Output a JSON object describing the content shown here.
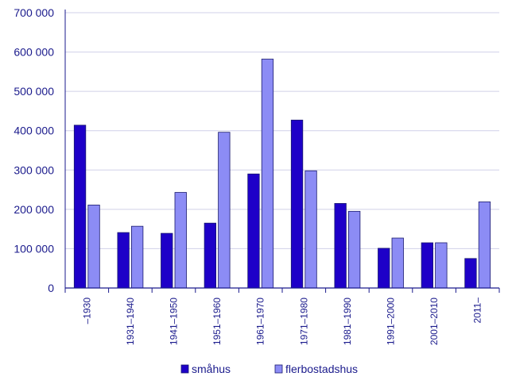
{
  "chart_data": {
    "type": "bar",
    "title": "",
    "xlabel": "",
    "ylabel": "",
    "categories": [
      "–1930",
      "1931–1940",
      "1941–1950",
      "1951–1960",
      "1961–1970",
      "1971–1980",
      "1981–1990",
      "1991–2000",
      "2001–2010",
      "2011–"
    ],
    "series": [
      {
        "name": "småhus",
        "color": "#1e00c8",
        "values": [
          414000,
          141000,
          139000,
          165000,
          290000,
          427000,
          215000,
          101000,
          115000,
          75000
        ]
      },
      {
        "name": "flerbostadshus",
        "color": "#8c8cf5",
        "values": [
          211000,
          157000,
          243000,
          396000,
          582000,
          298000,
          195000,
          127000,
          115000,
          219000
        ]
      }
    ],
    "ylim": [
      0,
      700000
    ],
    "yticks": [
      0,
      100000,
      200000,
      300000,
      400000,
      500000,
      600000,
      700000
    ],
    "ytick_labels": [
      "0",
      "100 000",
      "200 000",
      "300 000",
      "400 000",
      "500 000",
      "600 000",
      "700 000"
    ],
    "grid": true,
    "legend": "bottom-center",
    "colors": {
      "axis": "#1a1a8c",
      "grid": "#d0d0e8",
      "text": "#1a1a8c"
    }
  }
}
